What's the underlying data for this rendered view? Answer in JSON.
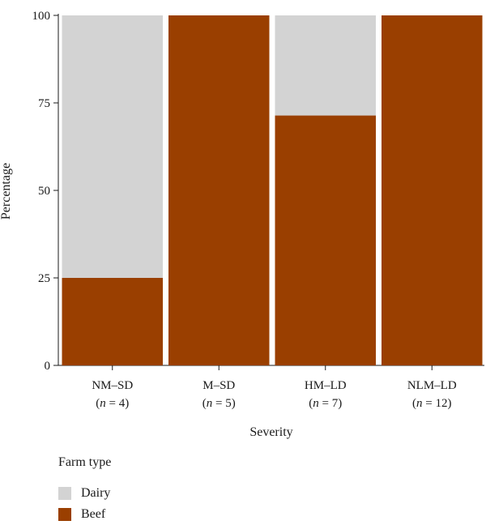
{
  "chart_data": {
    "type": "bar",
    "stacked": true,
    "xlabel": "Severity",
    "ylabel": "Percentage",
    "ylim": [
      0,
      100
    ],
    "yticks": [
      0,
      25,
      50,
      75,
      100
    ],
    "categories": [
      {
        "name": "NM–SD",
        "n": "4"
      },
      {
        "name": "M–SD",
        "n": "5"
      },
      {
        "name": "HM–LD",
        "n": "7"
      },
      {
        "name": "NLM–LD",
        "n": "12"
      }
    ],
    "series": [
      {
        "name": "Beef",
        "color": "#9a3f00",
        "values": [
          25,
          100,
          71.4,
          100
        ]
      },
      {
        "name": "Dairy",
        "color": "#d3d3d3",
        "values": [
          75,
          0,
          28.6,
          0
        ]
      }
    ],
    "legend": {
      "title": "Farm type",
      "items": [
        {
          "label": "Dairy",
          "color": "#d3d3d3"
        },
        {
          "label": "Beef",
          "color": "#9a3f00"
        }
      ]
    },
    "n_prefix": "n",
    "n_sep": " = "
  }
}
